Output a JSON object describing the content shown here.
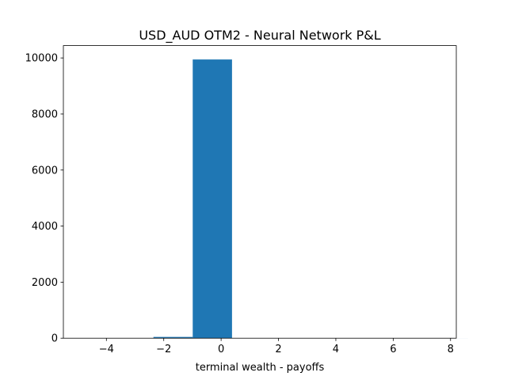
{
  "chart_data": {
    "type": "bar",
    "title": "USD_AUD OTM2 - Neural Network P&L",
    "xlabel": "terminal wealth - payoffs",
    "ylabel": "",
    "xlim": [
      -5.5,
      8.2
    ],
    "ylim": [
      0,
      10440
    ],
    "x_ticks": [
      -4,
      -2,
      0,
      2,
      4,
      6,
      8
    ],
    "x_tick_labels": [
      "−4",
      "−2",
      "0",
      "2",
      "4",
      "6",
      "8"
    ],
    "y_ticks": [
      0,
      2000,
      4000,
      6000,
      8000,
      10000
    ],
    "y_tick_labels": [
      "0",
      "2000",
      "4000",
      "6000",
      "8000",
      "10000"
    ],
    "bin_edges": [
      -5.11,
      -3.73,
      -2.36,
      -0.99,
      0.38,
      1.75,
      3.13,
      4.5,
      5.87,
      7.24,
      8.61
    ],
    "counts": [
      1,
      3,
      45,
      9945,
      4,
      1,
      0,
      0,
      0,
      1
    ],
    "bar_color": "#1f77b4",
    "grid": false,
    "legend": false
  }
}
